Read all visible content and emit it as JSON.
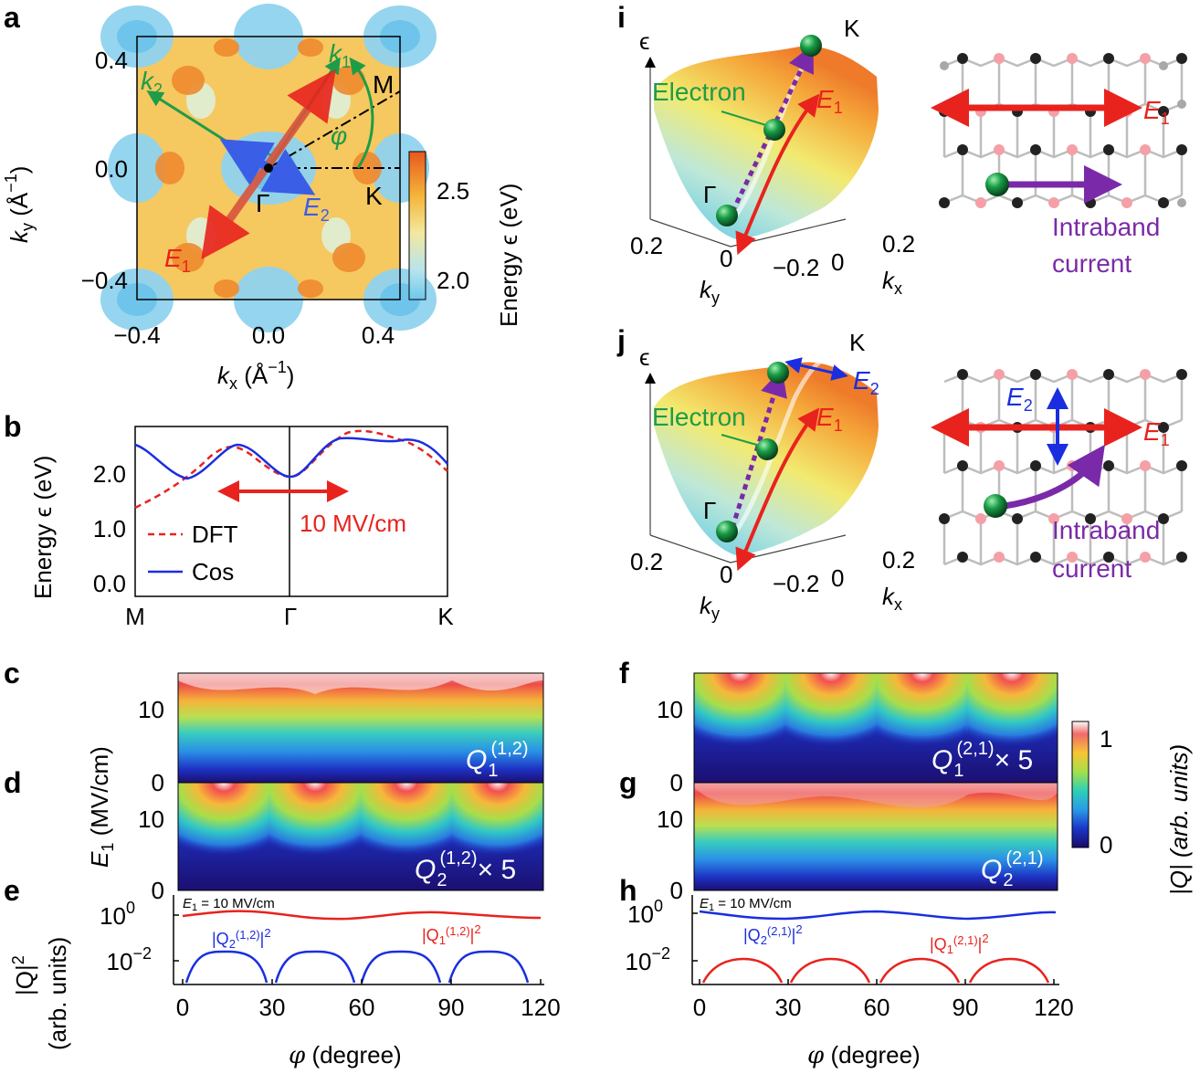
{
  "panels": {
    "a": "a",
    "b": "b",
    "c": "c",
    "d": "d",
    "e": "e",
    "f": "f",
    "g": "g",
    "h": "h",
    "i": "i",
    "j": "j"
  },
  "panel_a": {
    "xlabel_main": "k",
    "xlabel_sub": "x",
    "xlabel_unit": " (Å",
    "xlabel_sup": "−1",
    "xlabel_close": ")",
    "ylabel_main": "k",
    "ylabel_sub": "y",
    "ylabel_unit": " (Å",
    "ylabel_sup": "−1",
    "ylabel_close": ")",
    "xticks": [
      "−0.4",
      "0.0",
      "0.4"
    ],
    "yticks": [
      "0.4",
      "0.0",
      "−0.4"
    ],
    "k1": "k",
    "k1_sub": "1",
    "k2": "k",
    "k2_sub": "2",
    "M": "M",
    "K": "K",
    "Gamma": "Γ",
    "phi": "φ",
    "E1": "E",
    "E1_sub": "1",
    "E2": "E",
    "E2_sub": "2",
    "colorbar_ticks": [
      "2.5",
      "2.0"
    ],
    "colorbar_label": "Energy ϵ (eV)"
  },
  "panel_b": {
    "ylabel": "Energy ϵ (eV)",
    "yticks": [
      "2.0",
      "1.0",
      "0.0"
    ],
    "xticks": [
      "M",
      "Γ",
      "K"
    ],
    "legend": [
      "DFT",
      "Cos"
    ],
    "field_label": "10 MV/cm"
  },
  "panel_cde": {
    "ylabel_main": "E",
    "ylabel_sub": "1",
    "ylabel_rest": " (MV/cm)",
    "c_ticks": [
      "10",
      "0"
    ],
    "d_ticks": [
      "10",
      "0"
    ],
    "c_label": "Q",
    "c_sub": "1",
    "c_sup": "(1,2)",
    "d_label": "Q",
    "d_sub": "2",
    "d_sup": "(1,2)",
    "d_mult": "× 5",
    "e_field": "E",
    "e_field_sub": "1",
    "e_field_rest": " = 10 MV/cm",
    "e_ylabel1": "|Q|",
    "e_ylabel_sup": "2",
    "e_ylabel2": "(arb. units)",
    "e_yticks_base": [
      "10",
      "10"
    ],
    "e_yticks_exp": [
      "0",
      "−2"
    ],
    "e_q2": "|Q",
    "e_q2_sub": "2",
    "e_q2_sup": "(1,2)",
    "e_q2_end": "|",
    "e_q2_pow": "2",
    "e_q1": "|Q",
    "e_q1_sub": "1",
    "e_q1_sup": "(1,2)",
    "e_q1_end": "|",
    "e_q1_pow": "2",
    "xticks": [
      "0",
      "30",
      "60",
      "90",
      "120"
    ],
    "xlabel": "φ",
    "xlabel_rest": " (degree)"
  },
  "panel_fgh": {
    "f_ticks": [
      "10",
      "0"
    ],
    "g_ticks": [
      "10",
      "0"
    ],
    "f_label": "Q",
    "f_sub": "1",
    "f_sup": "(2,1)",
    "f_mult": "× 5",
    "g_label": "Q",
    "g_sub": "2",
    "g_sup": "(2,1)",
    "h_field": "E",
    "h_field_sub": "1",
    "h_field_rest": " = 10 MV/cm",
    "h_yticks_base": [
      "10",
      "10"
    ],
    "h_yticks_exp": [
      "0",
      "−2"
    ],
    "h_q2": "|Q",
    "h_q2_sub": "2",
    "h_q2_sup": "(2,1)",
    "h_q2_end": "|",
    "h_q2_pow": "2",
    "h_q1": "|Q",
    "h_q1_sub": "1",
    "h_q1_sup": "(2,1)",
    "h_q1_end": "|",
    "h_q1_pow": "2",
    "xticks": [
      "0",
      "30",
      "60",
      "90",
      "120"
    ],
    "xlabel": "φ",
    "xlabel_rest": " (degree)",
    "colorbar_ticks": [
      "1",
      "0"
    ],
    "colorbar_label": "|Q| (arb. units)"
  },
  "panel_i": {
    "eps": "ϵ",
    "K": "K",
    "Electron": "Electron",
    "Gamma": "Γ",
    "E1": "E",
    "E1_sub": "1",
    "ky_ticks": [
      "0.2",
      "0"
    ],
    "kx_ticks": [
      "−0.2",
      "0",
      "0.2"
    ],
    "ky": "k",
    "ky_sub": "y",
    "kx": "k",
    "kx_sub": "x",
    "lat_E1": "E",
    "lat_E1_sub": "1",
    "intraband": "Intraband",
    "current": "current"
  },
  "panel_j": {
    "eps": "ϵ",
    "K": "K",
    "Electron": "Electron",
    "Gamma": "Γ",
    "E1": "E",
    "E1_sub": "1",
    "E2": "E",
    "E2_sub": "2",
    "ky_ticks": [
      "0.2",
      "0"
    ],
    "kx_ticks": [
      "−0.2",
      "0",
      "0.2"
    ],
    "ky": "k",
    "ky_sub": "y",
    "kx": "k",
    "kx_sub": "x",
    "lat_E1": "E",
    "lat_E1_sub": "1",
    "lat_E2": "E",
    "lat_E2_sub": "2",
    "intraband": "Intraband",
    "current": "current"
  }
}
